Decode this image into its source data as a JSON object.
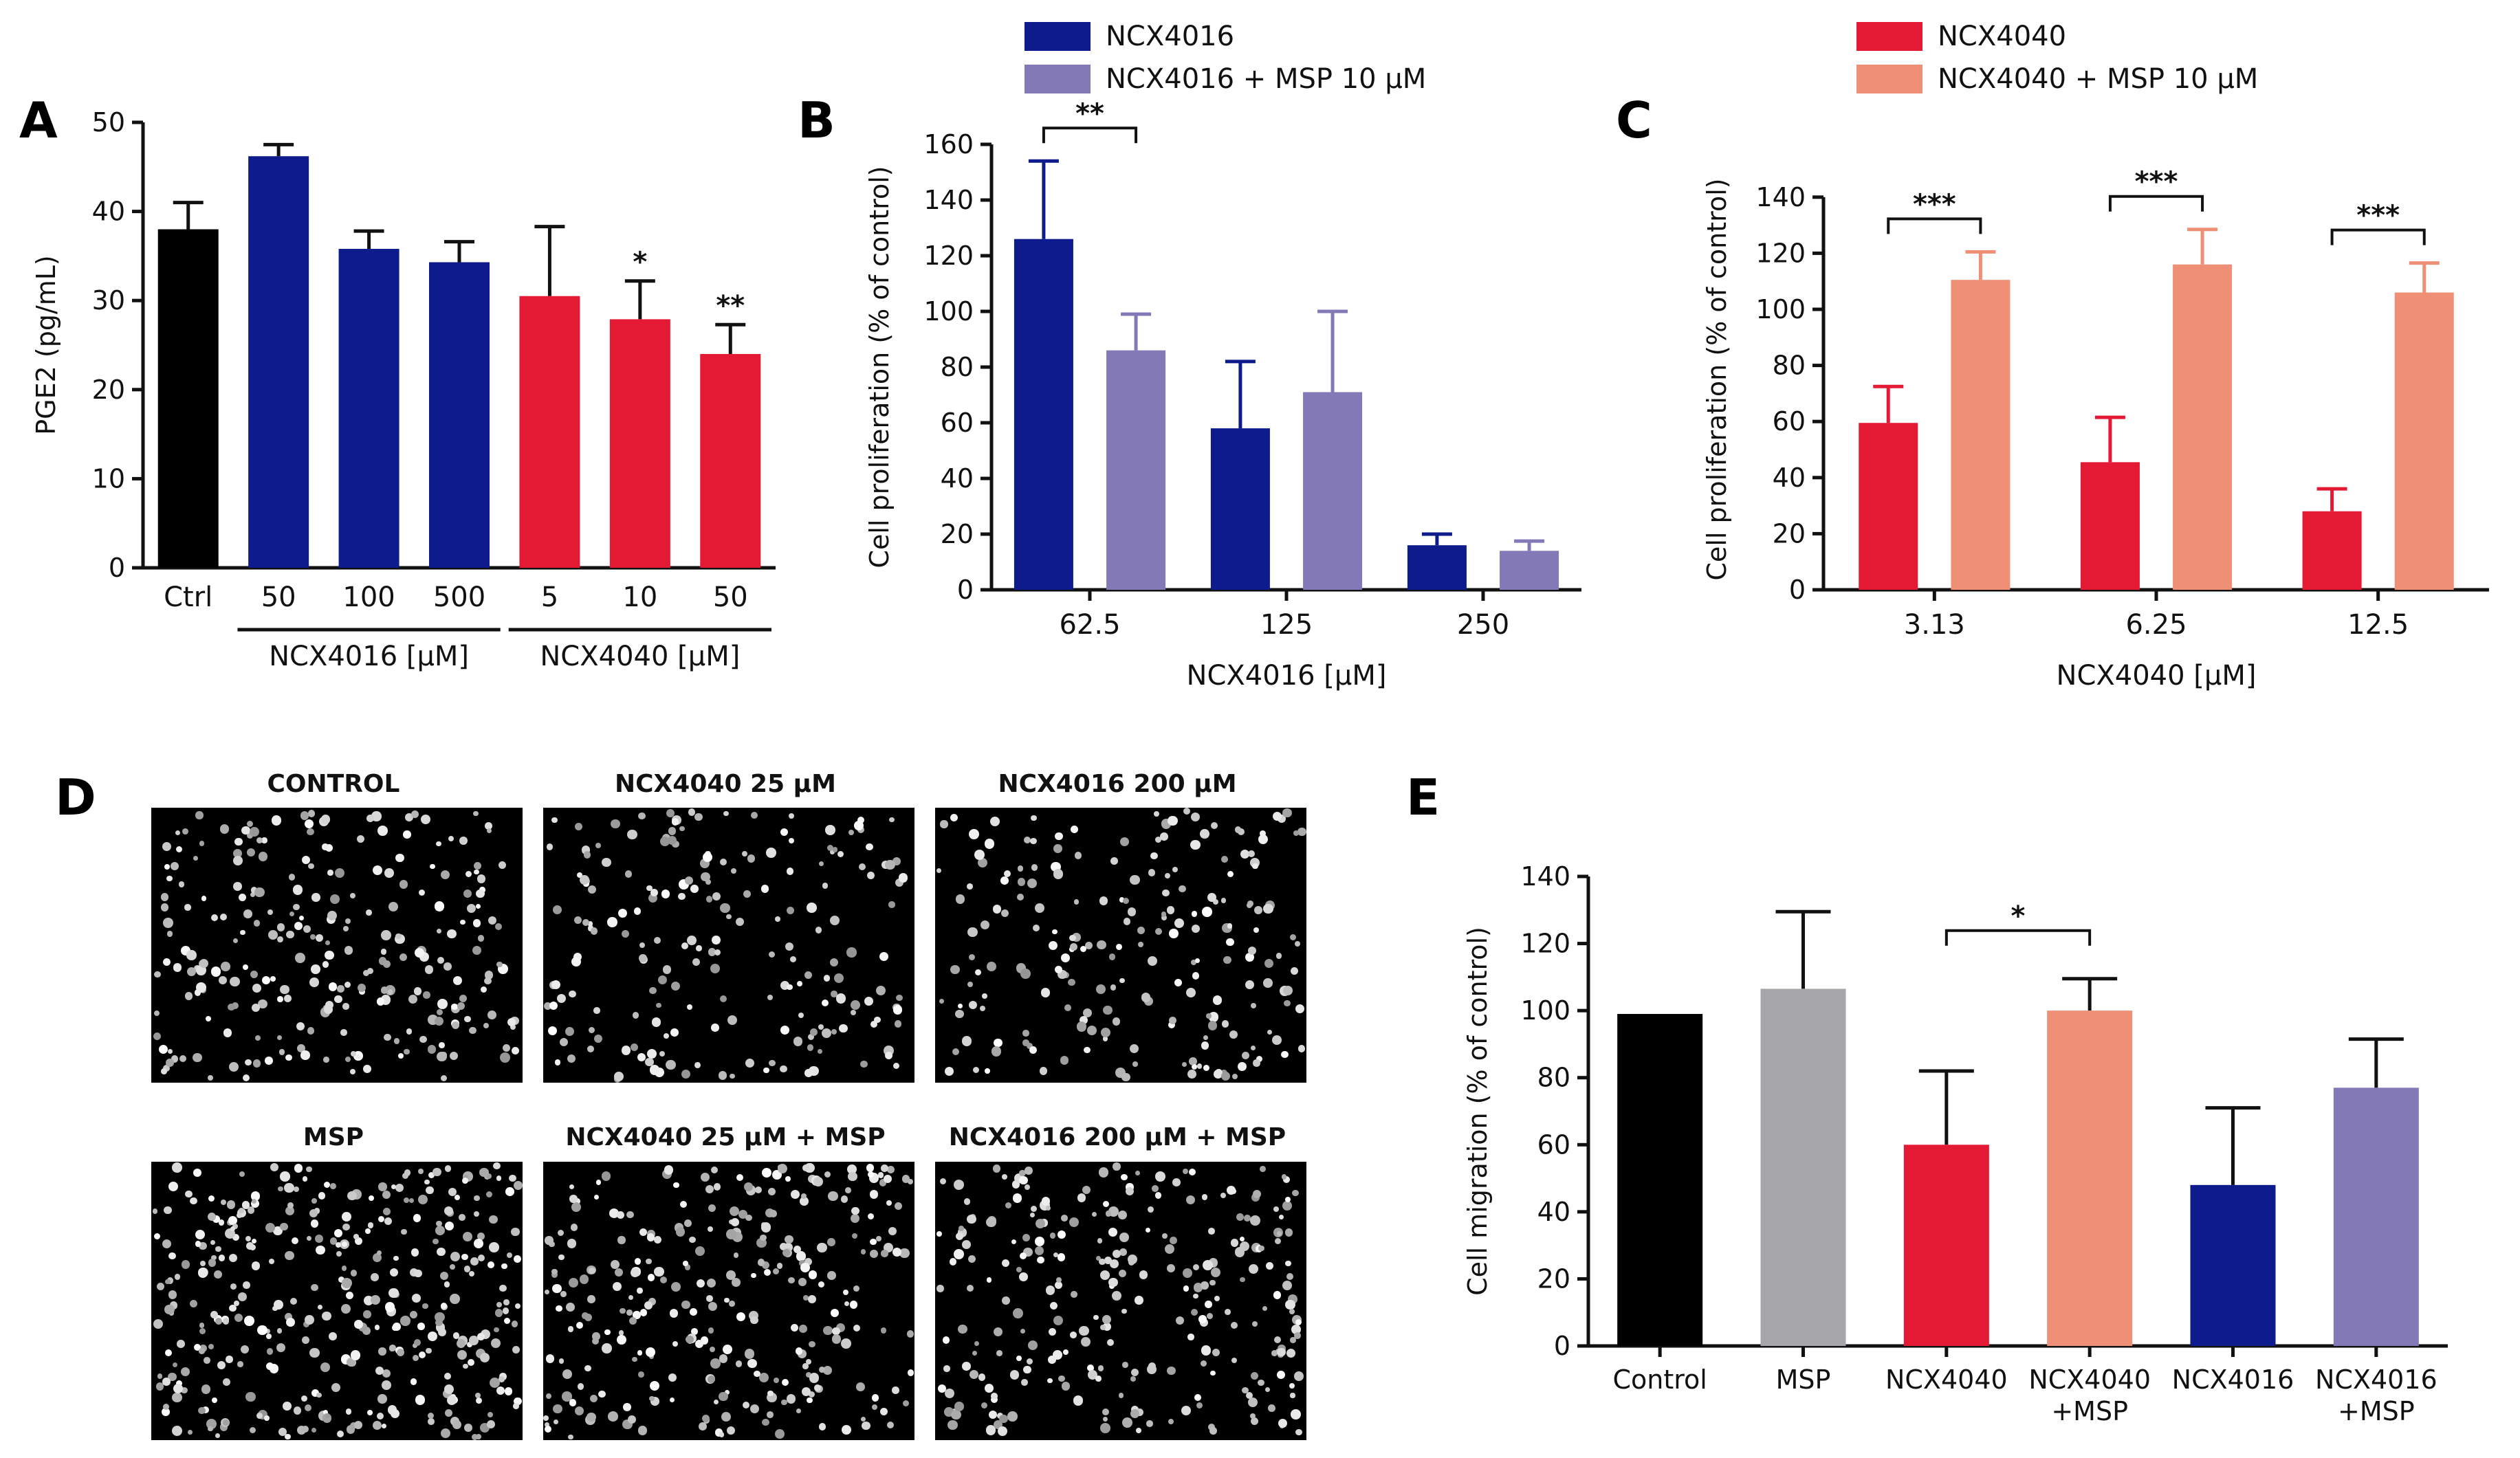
{
  "colors": {
    "black": "#000000",
    "navy": "#0d1b8c",
    "lavender": "#8379b6",
    "red": "#e41a35",
    "salmon": "#ef8f76",
    "grey": "#a6a6aa"
  },
  "panel_letters": {
    "A": "A",
    "B": "B",
    "C": "C",
    "D": "D",
    "E": "E"
  },
  "chart_data": [
    {
      "panel": "A",
      "type": "bar",
      "ylabel": "PGE2 (pg/mL)",
      "ylim": [
        0,
        50
      ],
      "yticks": [
        0,
        10,
        20,
        30,
        40,
        50
      ],
      "categories": [
        "Ctrl",
        "50",
        "100",
        "500",
        "5",
        "10",
        "50"
      ],
      "values": [
        38,
        46.2,
        35.8,
        34.3,
        30.5,
        27.9,
        24
      ],
      "errors": [
        3,
        1.3,
        2,
        2.3,
        7.8,
        4.3,
        3.3
      ],
      "colors": [
        "#000000",
        "#0d1b8c",
        "#0d1b8c",
        "#0d1b8c",
        "#e41a35",
        "#e41a35",
        "#e41a35"
      ],
      "significance": [
        "",
        "",
        "",
        "",
        "",
        "*",
        "**"
      ],
      "groups": [
        {
          "label": "NCX4016 [μM]",
          "from": 1,
          "to": 3
        },
        {
          "label": "NCX4040 [μM]",
          "from": 4,
          "to": 6
        }
      ]
    },
    {
      "panel": "B",
      "type": "bar",
      "xlabel": "NCX4016 [μM]",
      "ylabel": "Cell proliferation (% of control)",
      "ylim": [
        0,
        160
      ],
      "yticks": [
        0,
        20,
        40,
        60,
        80,
        100,
        120,
        140,
        160
      ],
      "categories": [
        "62.5",
        "125",
        "250"
      ],
      "series": [
        {
          "name": "NCX4016",
          "color": "#0d1b8c",
          "values": [
            126,
            58,
            16
          ],
          "errors": [
            28,
            24,
            4
          ]
        },
        {
          "name": "NCX4016 + MSP 10 μM",
          "color": "#8379b6",
          "values": [
            86,
            71,
            14
          ],
          "errors": [
            13,
            29,
            3.5
          ]
        }
      ],
      "brackets": [
        {
          "category": 0,
          "label": "**"
        }
      ]
    },
    {
      "panel": "C",
      "type": "bar",
      "xlabel": "NCX4040 [μM]",
      "ylabel": "Cell proliferation (% of control)",
      "ylim": [
        0,
        150
      ],
      "yticks": [
        0,
        20,
        40,
        60,
        80,
        100,
        120,
        140
      ],
      "categories": [
        "3.13",
        "6.25",
        "12.5"
      ],
      "series": [
        {
          "name": "NCX4040",
          "color": "#e41a35",
          "values": [
            59.5,
            45.5,
            28
          ],
          "errors": [
            13,
            16,
            8
          ]
        },
        {
          "name": "NCX4040 + MSP 10 μM",
          "color": "#ef8f76",
          "values": [
            110.5,
            116,
            106
          ],
          "errors": [
            10,
            12.5,
            10.5
          ]
        }
      ],
      "brackets": [
        {
          "category": 0,
          "label": "***"
        },
        {
          "category": 1,
          "label": "***"
        },
        {
          "category": 2,
          "label": "***"
        }
      ]
    },
    {
      "panel": "E",
      "type": "bar",
      "ylabel": "Cell migration (% of control)",
      "ylim": [
        0,
        140
      ],
      "yticks": [
        0,
        20,
        40,
        60,
        80,
        100,
        120,
        140
      ],
      "categories": [
        "Control",
        "MSP",
        "NCX4040",
        "NCX4040\n+MSP",
        "NCX4016",
        "NCX4016\n+MSP"
      ],
      "values": [
        99,
        106.5,
        60,
        100,
        48,
        77
      ],
      "errors": [
        0,
        23,
        22,
        9.5,
        23,
        14.5
      ],
      "colors": [
        "#000000",
        "#a6a6aa",
        "#e41a35",
        "#ef8f76",
        "#0d1b8c",
        "#8379b6"
      ],
      "brackets": [
        {
          "from": 2,
          "to": 3,
          "label": "*"
        }
      ]
    }
  ],
  "micrographs": [
    {
      "title": "CONTROL"
    },
    {
      "title": "NCX4040 25 μM"
    },
    {
      "title": "NCX4016 200 μM"
    },
    {
      "title": "MSP"
    },
    {
      "title": "NCX4040 25 μM + MSP"
    },
    {
      "title": "NCX4016 200 μM + MSP"
    }
  ]
}
